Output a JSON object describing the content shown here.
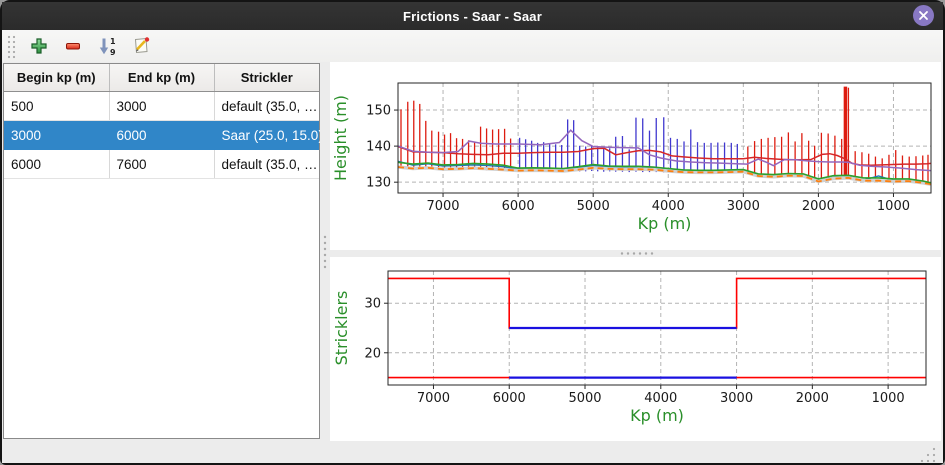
{
  "window": {
    "title": "Frictions - Saar - Saar"
  },
  "toolbar": {
    "buttons": [
      {
        "name": "add",
        "icon": "plus-icon"
      },
      {
        "name": "remove",
        "icon": "minus-icon"
      },
      {
        "name": "sort",
        "icon": "sort-numeric-down-icon",
        "digit_top": "1",
        "digit_bottom": "9"
      },
      {
        "name": "edit",
        "icon": "edit-pencil-icon"
      }
    ]
  },
  "table": {
    "columns": [
      "Begin kp (m)",
      "End kp (m)",
      "Strickler"
    ],
    "rows": [
      {
        "begin": "500",
        "end": "3000",
        "strickler": "default (35.0, …",
        "selected": false
      },
      {
        "begin": "3000",
        "end": "6000",
        "strickler": "Saar (25.0, 15.0)",
        "selected": true
      },
      {
        "begin": "6000",
        "end": "7600",
        "strickler": "default (35.0, …",
        "selected": false
      }
    ]
  },
  "colors": {
    "selection": "#3086c8",
    "titlebar": "#2b2b2b",
    "close_button": "#8878c3",
    "axis_label_green": "#2a8f2a",
    "spike_red": "#dd1c10",
    "spike_blue": "#4038cf",
    "step_red": "#ff0000",
    "step_blue": "#1a10e0"
  },
  "chart_data": [
    {
      "type": "line",
      "title": "",
      "xlabel": "Kp (m)",
      "ylabel": "Height (m)",
      "xlim": [
        7600,
        500
      ],
      "ylim": [
        127,
        157.5
      ],
      "x_ticks": [
        7000,
        6000,
        5000,
        4000,
        3000,
        2000,
        1000
      ],
      "y_ticks": [
        130,
        140,
        150
      ],
      "x_reversed": true,
      "grid": true,
      "legend": "none",
      "x_default": [
        7600,
        7400,
        7200,
        7000,
        6800,
        6600,
        6400,
        6200,
        6000,
        5800,
        5600,
        5400,
        5200,
        5000,
        4800,
        4600,
        4400,
        4200,
        4000,
        3800,
        3600,
        3400,
        3200,
        3000,
        2800,
        2600,
        2400,
        2200,
        2000,
        1800,
        1600,
        1400,
        1200,
        1000,
        800,
        600,
        500
      ],
      "spikes": [
        {
          "name": "cross-sections-default-zone",
          "color": "#dd1c10",
          "items": [
            [
              7560,
              133.8,
              150.2
            ],
            [
              7470,
              133.6,
              152.3
            ],
            [
              7390,
              133.6,
              152.6
            ],
            [
              7310,
              133.7,
              151.7
            ],
            [
              7230,
              133.5,
              147.0
            ],
            [
              7150,
              133.6,
              144.3
            ],
            [
              7060,
              133.4,
              144.0
            ],
            [
              6980,
              133.5,
              143.2
            ],
            [
              6900,
              133.6,
              143.6
            ],
            [
              6820,
              133.4,
              142.2
            ],
            [
              6740,
              133.5,
              142.0
            ],
            [
              6660,
              133.4,
              141.6
            ],
            [
              6580,
              133.5,
              141.2
            ],
            [
              6500,
              133.4,
              145.4
            ],
            [
              6420,
              133.3,
              144.9
            ],
            [
              6340,
              133.4,
              144.6
            ],
            [
              6260,
              133.3,
              144.7
            ],
            [
              6180,
              133.4,
              144.8
            ],
            [
              6100,
              133.3,
              142.1
            ],
            [
              2940,
              132.3,
              139.9
            ],
            [
              2850,
              132.2,
              141.4
            ],
            [
              2760,
              132.1,
              142.0
            ],
            [
              2670,
              132.0,
              142.3
            ],
            [
              2580,
              131.9,
              142.5
            ],
            [
              2490,
              131.8,
              142.6
            ],
            [
              2400,
              131.7,
              143.8
            ],
            [
              2310,
              131.6,
              141.3
            ],
            [
              2220,
              131.5,
              143.6
            ],
            [
              2130,
              131.2,
              141.5
            ],
            [
              2050,
              130.9,
              140.1
            ],
            [
              1960,
              131.1,
              143.7
            ],
            [
              1870,
              131.5,
              143.5
            ],
            [
              1780,
              131.7,
              142.9
            ],
            [
              1690,
              131.8,
              142.0
            ],
            [
              1640,
              131.8,
              156.5,
              3.5
            ],
            [
              1600,
              131.7,
              156.2
            ],
            [
              1510,
              131.4,
              138.6
            ],
            [
              1420,
              131.2,
              138.3
            ],
            [
              1330,
              131.0,
              137.9
            ],
            [
              1240,
              131.0,
              137.1
            ],
            [
              1150,
              130.9,
              136.6
            ],
            [
              1060,
              130.9,
              137.6
            ],
            [
              970,
              131.0,
              138.9
            ],
            [
              880,
              130.8,
              137.4
            ],
            [
              790,
              130.5,
              137.1
            ],
            [
              700,
              130.4,
              137.2
            ],
            [
              610,
              130.2,
              137.4
            ],
            [
              540,
              130.0,
              137.6
            ]
          ]
        },
        {
          "name": "cross-sections-selected-zone",
          "color": "#4038cf",
          "items": [
            [
              5980,
              133.2,
              142.3
            ],
            [
              5900,
              133.3,
              141.9
            ],
            [
              5820,
              133.2,
              141.5
            ],
            [
              5740,
              133.1,
              140.9
            ],
            [
              5660,
              133.2,
              141.1
            ],
            [
              5580,
              133.1,
              140.6
            ],
            [
              5500,
              133.2,
              140.5
            ],
            [
              5420,
              133.1,
              140.3
            ],
            [
              5340,
              133.0,
              147.4
            ],
            [
              5260,
              133.1,
              147.2
            ],
            [
              5180,
              133.0,
              140.1
            ],
            [
              5100,
              133.0,
              139.9
            ],
            [
              5020,
              133.1,
              140.0
            ],
            [
              4940,
              133.0,
              139.6
            ],
            [
              4860,
              132.9,
              139.5
            ],
            [
              4780,
              133.0,
              139.4
            ],
            [
              4700,
              132.9,
              142.6
            ],
            [
              4610,
              132.9,
              142.8
            ],
            [
              4520,
              132.8,
              139.1
            ],
            [
              4430,
              132.9,
              147.9
            ],
            [
              4340,
              132.8,
              147.7
            ],
            [
              4250,
              132.8,
              144.3
            ],
            [
              4160,
              132.8,
              147.8
            ],
            [
              4060,
              132.7,
              148.0
            ],
            [
              3970,
              132.8,
              142.3
            ],
            [
              3880,
              132.7,
              142.0
            ],
            [
              3790,
              132.7,
              141.3
            ],
            [
              3700,
              132.6,
              144.6
            ],
            [
              3610,
              132.7,
              141.1
            ],
            [
              3520,
              132.6,
              140.9
            ],
            [
              3430,
              132.6,
              140.9
            ],
            [
              3340,
              132.6,
              141.0
            ],
            [
              3250,
              132.5,
              141.0
            ],
            [
              3160,
              132.5,
              140.9
            ],
            [
              3080,
              132.5,
              140.6
            ]
          ]
        }
      ],
      "series": [
        {
          "name": "blue",
          "color": "#1f77b4",
          "width": 1.4,
          "y": [
            135.8,
            134.7,
            135.1,
            134.5,
            134.6,
            134.8,
            134.6,
            134.3,
            133.6,
            133.7,
            133.6,
            133.5,
            134.0,
            134.6,
            134.2,
            134.1,
            134.0,
            133.9,
            133.5,
            133.1,
            133.0,
            133.0,
            133.1,
            133.2,
            132.0,
            131.8,
            132.1,
            132.0,
            130.4,
            131.3,
            131.5,
            130.6,
            131.7,
            130.5,
            130.6,
            130.0,
            129.6
          ]
        },
        {
          "name": "orange-dashed",
          "color": "#ff7f0e",
          "width": 1.8,
          "dash": "6 4",
          "backing": "#d0d0d0",
          "y": [
            134.2,
            133.8,
            134.0,
            133.6,
            133.7,
            133.9,
            133.7,
            133.5,
            133.2,
            133.3,
            133.2,
            133.1,
            133.5,
            134.0,
            133.7,
            133.6,
            133.6,
            133.5,
            133.1,
            132.8,
            132.7,
            132.7,
            132.8,
            132.9,
            131.7,
            131.5,
            131.8,
            131.7,
            130.2,
            131.0,
            131.2,
            130.4,
            130.4,
            130.2,
            130.3,
            129.8,
            129.4
          ]
        },
        {
          "name": "green",
          "color": "#2ca02c",
          "width": 1.6,
          "y": [
            135.5,
            135.0,
            135.3,
            134.8,
            134.9,
            135.2,
            135.0,
            134.7,
            133.9,
            134.0,
            133.9,
            133.8,
            134.3,
            134.9,
            134.5,
            134.4,
            134.4,
            134.2,
            133.8,
            133.4,
            133.3,
            133.3,
            133.4,
            133.5,
            132.3,
            132.1,
            132.4,
            132.3,
            130.9,
            131.8,
            131.9,
            131.2,
            131.2,
            130.9,
            130.9,
            130.3,
            129.8
          ]
        },
        {
          "name": "red",
          "color": "#d62728",
          "width": 1.5,
          "x": [
            7600,
            7400,
            7200,
            7000,
            6800,
            6600,
            6400,
            6200,
            6000,
            5800,
            5600,
            5400,
            5200,
            5000,
            4850,
            4700,
            4550,
            4400,
            4250,
            4100,
            3950,
            3800,
            3600,
            3400,
            3200,
            3000,
            2850,
            2700,
            2550,
            2400,
            2250,
            2100,
            1950,
            1850,
            1750,
            1650,
            1550,
            1450,
            1300,
            1150,
            1000,
            850,
            700,
            550,
            500
          ],
          "y": [
            139.9,
            138.4,
            138.3,
            138.2,
            137.9,
            137.7,
            137.6,
            138.0,
            138.0,
            138.2,
            138.3,
            138.3,
            138.5,
            139.3,
            139.4,
            137.6,
            138.2,
            138.7,
            138.8,
            138.4,
            137.3,
            137.0,
            136.7,
            136.5,
            136.5,
            136.5,
            136.9,
            136.6,
            136.4,
            136.2,
            136.2,
            136.3,
            137.7,
            137.9,
            137.4,
            136.5,
            135.2,
            134.8,
            134.7,
            134.8,
            134.9,
            135.0,
            135.0,
            135.1,
            135.2
          ]
        },
        {
          "name": "purple",
          "color": "#9467bd",
          "width": 1.5,
          "x": [
            7600,
            7400,
            7200,
            7000,
            6800,
            6650,
            6500,
            6300,
            6000,
            5700,
            5450,
            5300,
            5150,
            5000,
            4800,
            4600,
            4400,
            4250,
            4100,
            3900,
            3700,
            3500,
            3300,
            3100,
            2950,
            2800,
            2700,
            2600,
            2450,
            2300,
            2150,
            2000,
            1850,
            1700,
            1600,
            1450,
            1300,
            1100,
            900,
            700,
            500
          ],
          "y": [
            140.0,
            138.6,
            138.3,
            138.2,
            138.5,
            141.4,
            140.8,
            140.6,
            140.6,
            140.4,
            141.0,
            144.4,
            141.5,
            139.9,
            139.7,
            139.6,
            139.5,
            137.6,
            136.7,
            135.9,
            135.6,
            135.4,
            135.3,
            135.1,
            135.0,
            136.4,
            135.6,
            134.6,
            136.3,
            136.2,
            135.9,
            135.7,
            135.6,
            135.6,
            135.5,
            134.7,
            134.4,
            134.2,
            133.9,
            133.5,
            133.2
          ]
        }
      ]
    },
    {
      "type": "line",
      "title": "",
      "xlabel": "Kp (m)",
      "ylabel": "Stricklers",
      "xlim": [
        7600,
        500
      ],
      "ylim": [
        13.5,
        36.5
      ],
      "x_ticks": [
        7000,
        6000,
        5000,
        4000,
        3000,
        2000,
        1000
      ],
      "y_ticks": [
        20,
        30
      ],
      "x_reversed": true,
      "grid": true,
      "legend": "none",
      "series": [
        {
          "name": "minor-bed-strickler",
          "color": "#ff0000",
          "width": 1.6,
          "x": [
            7600,
            6000,
            6000,
            3000,
            3000,
            500
          ],
          "y": [
            35,
            35,
            25,
            25,
            35,
            35
          ]
        },
        {
          "name": "major-bed-strickler",
          "color": "#ff0000",
          "width": 1.6,
          "x": [
            7600,
            500
          ],
          "y": [
            15,
            15
          ]
        },
        {
          "name": "minor-bed-strickler-selected",
          "color": "#1a10e0",
          "width": 2.2,
          "x": [
            6000,
            3000
          ],
          "y": [
            25,
            25
          ]
        },
        {
          "name": "major-bed-strickler-selected",
          "color": "#1a10e0",
          "width": 2.2,
          "x": [
            6000,
            3000
          ],
          "y": [
            15,
            15
          ]
        }
      ]
    }
  ]
}
